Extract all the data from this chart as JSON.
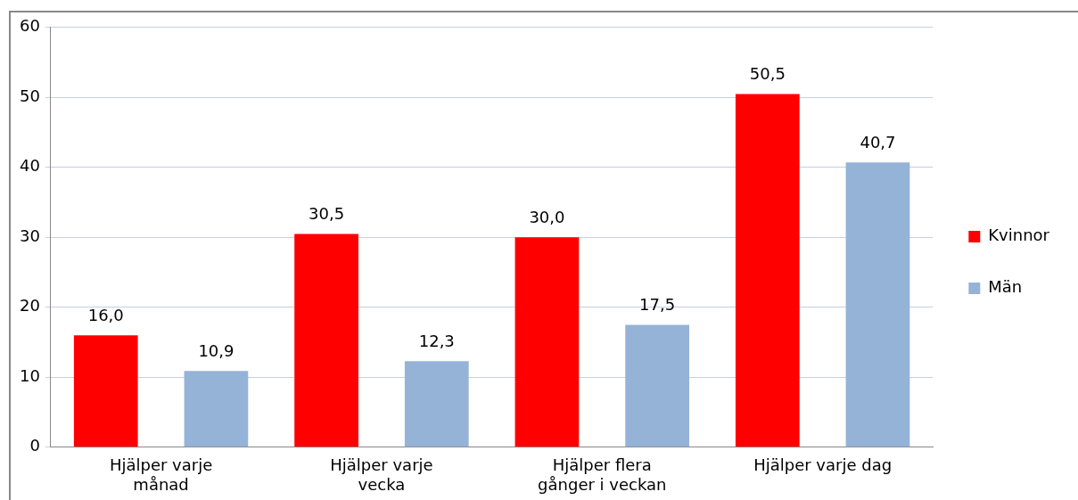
{
  "chart_data": {
    "type": "bar",
    "categories": [
      "Hjälper varje månad",
      "Hjälper varje vecka",
      "Hjälper flera gånger i veckan",
      "Hjälper varje dag"
    ],
    "series": [
      {
        "name": "Kvinnor",
        "color": "#ff0000",
        "values": [
          16.0,
          30.5,
          30.0,
          50.5
        ],
        "value_labels": [
          "16,0",
          "30,5",
          "30,0",
          "50,5"
        ]
      },
      {
        "name": "Män",
        "color": "#95b3d7",
        "values": [
          10.9,
          12.3,
          17.5,
          40.7
        ],
        "value_labels": [
          "10,9",
          "12,3",
          "17,5",
          "40,7"
        ]
      }
    ],
    "ylim": [
      0,
      60
    ],
    "yticks": [
      0,
      10,
      20,
      30,
      40,
      50,
      60
    ],
    "grid": "y",
    "legend": "right"
  }
}
